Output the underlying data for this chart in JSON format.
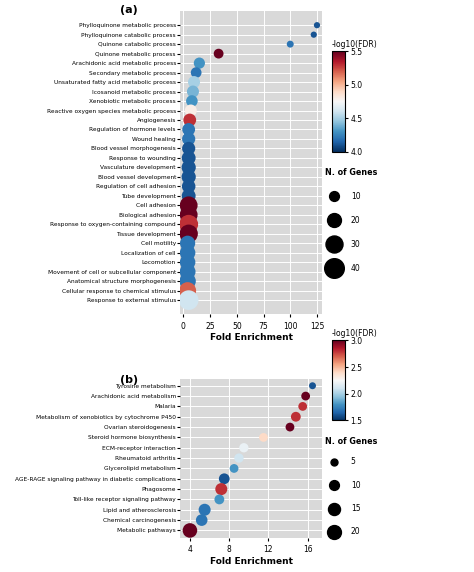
{
  "panel_a": {
    "categories": [
      "Phylloquinone metabolic process",
      "Phylloquinone catabolic process",
      "Quinone catabolic process",
      "Quinone metabolic process",
      "Arachidonic acid metabolic process",
      "Secondary metabolic process",
      "Unsaturated fatty acid metabolic process",
      "Icosanoid metabolic process",
      "Xenobiotic metabolic process",
      "Reactive oxygen species metabolic process",
      "Angiogenesis",
      "Regulation of hormone levels",
      "Wound healing",
      "Blood vessel morphogenesis",
      "Response to wounding",
      "Vasculature development",
      "Blood vessel development",
      "Regulation of cell adhesion",
      "Tube development",
      "Cell adhesion",
      "Biological adhesion",
      "Response to oxygen-containing compound",
      "Tissue development",
      "Cell motility",
      "Localization of cell",
      "Locomotion",
      "Movement of cell or subcellular component",
      "Anatomical structure morphogenesis",
      "Cellular response to chemical stimulus",
      "Response to external stimulus"
    ],
    "fold_enrichment": [
      125,
      122,
      100,
      33,
      15,
      12,
      10,
      9,
      8,
      7,
      6,
      5,
      5,
      5,
      5,
      5,
      5,
      5,
      5,
      5,
      5,
      5,
      5,
      4,
      4,
      4,
      4,
      4,
      4,
      5
    ],
    "fdr": [
      4.1,
      4.1,
      4.2,
      5.5,
      4.3,
      4.2,
      4.5,
      4.4,
      4.3,
      4.8,
      5.3,
      4.2,
      4.2,
      4.1,
      4.1,
      4.1,
      4.1,
      4.1,
      4.1,
      5.5,
      5.5,
      5.3,
      5.5,
      4.2,
      4.2,
      4.2,
      4.2,
      4.2,
      5.2,
      4.6
    ],
    "n_genes": [
      4,
      4,
      5,
      10,
      13,
      12,
      15,
      15,
      14,
      15,
      17,
      17,
      18,
      18,
      20,
      21,
      21,
      19,
      20,
      33,
      33,
      37,
      35,
      24,
      25,
      25,
      26,
      28,
      30,
      40
    ],
    "fdr_vmin": 4.0,
    "fdr_vmax": 5.5,
    "xlim": [
      -3,
      130
    ],
    "xticks": [
      0,
      25,
      50,
      75,
      100,
      125
    ],
    "cbar_ticks": [
      4.0,
      4.5,
      5.0,
      5.5
    ],
    "size_legend_values": [
      10,
      20,
      30,
      40
    ],
    "xlabel": "Fold Enrichment",
    "label": "(a)",
    "size_scale": 5.0
  },
  "panel_b": {
    "categories": [
      "Tyrosine metabolism",
      "Arachidonic acid metabolism",
      "Malaria",
      "Metabolism of xenobiotics by cytochrome P450",
      "Ovarian steroidogenesis",
      "Steroid hormone biosynthesis",
      "ECM-receptor interaction",
      "Rheumatoid arthritis",
      "Glycerolipid metabolism",
      "AGE-RAGE signaling pathway in diabetic complications",
      "Phagosome",
      "Toll-like receptor signaling pathway",
      "Lipid and atherosclerosis",
      "Chemical carcinogenesis",
      "Metabolic pathways"
    ],
    "fold_enrichment": [
      16.5,
      15.8,
      15.5,
      14.8,
      14.2,
      11.5,
      9.5,
      9.0,
      8.5,
      7.5,
      7.2,
      7.0,
      5.5,
      5.2,
      4.0
    ],
    "fdr": [
      1.6,
      3.0,
      2.8,
      2.8,
      3.0,
      2.4,
      2.2,
      2.1,
      1.8,
      1.6,
      2.8,
      1.8,
      1.7,
      1.7,
      3.0
    ],
    "n_genes": [
      5,
      8,
      8,
      10,
      8,
      8,
      9,
      9,
      8,
      12,
      15,
      10,
      15,
      14,
      22
    ],
    "fdr_vmin": 1.5,
    "fdr_vmax": 3.0,
    "xlim": [
      3.0,
      17.5
    ],
    "xticks": [
      4,
      8,
      12,
      16
    ],
    "cbar_ticks": [
      1.5,
      2.0,
      2.5,
      3.0
    ],
    "size_legend_values": [
      5,
      10,
      15,
      20
    ],
    "xlabel": "Fold Enrichment",
    "label": "(b)",
    "size_scale": 5.0
  },
  "colormap": "RdBu_r",
  "bg_color": "#d9d9d9"
}
